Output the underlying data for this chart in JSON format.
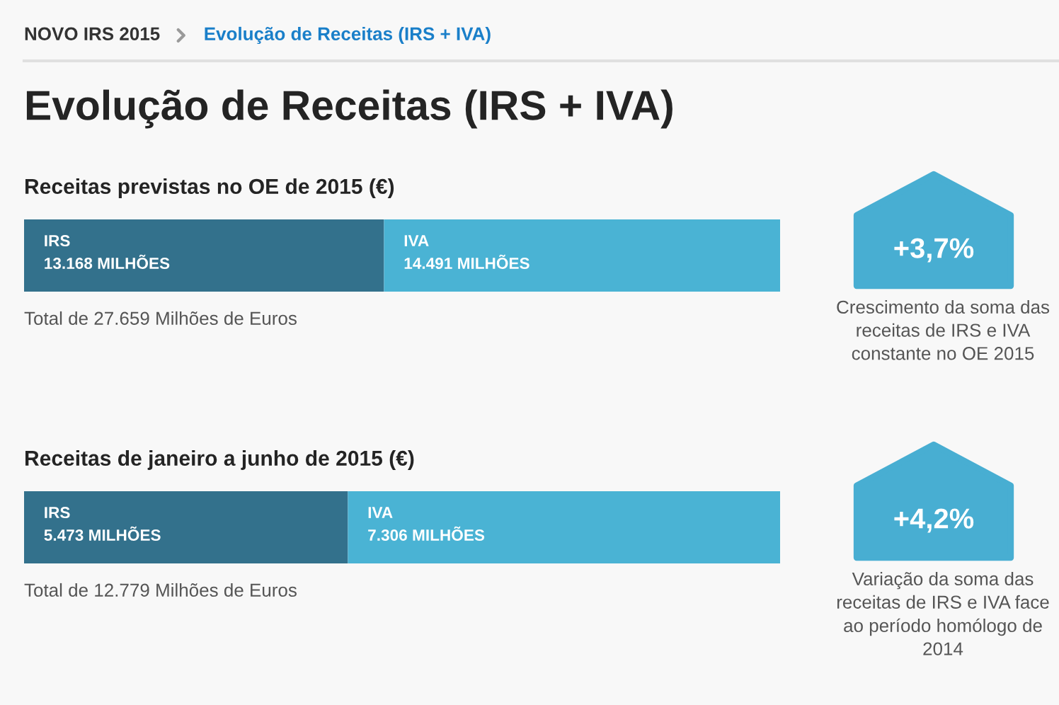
{
  "chart_data": [
    {
      "type": "other",
      "title": "Evolução de Receitas (IRS + IVA)",
      "annotations": [
        "NOVO IRS 2015",
        "Evolução de Receitas (IRS + IVA)"
      ]
    },
    {
      "type": "bar",
      "orientation": "horizontal",
      "stacked": true,
      "title": "Receitas previstas no OE de 2015 (€)",
      "categories": [
        null
      ],
      "xlim": [
        0,
        27659
      ],
      "tick_labels": false,
      "series": [
        {
          "name": "IRS",
          "color": "#33718c",
          "values": [
            13168
          ],
          "value_labels": [
            "13.168 MILHÕES"
          ]
        },
        {
          "name": "IVA",
          "color": "#4ab3d4",
          "values": [
            14491
          ],
          "value_labels": [
            "14.491 MILHÕES"
          ]
        }
      ],
      "annotations": [
        "Total de 27.659 Milhões de Euros"
      ]
    },
    {
      "type": "other",
      "title": "+3,7%",
      "annotations": [
        "Crescimento da soma das receitas de IRS e IVA constante no OE 2015"
      ]
    },
    {
      "type": "bar",
      "orientation": "horizontal",
      "stacked": true,
      "title": "Receitas de janeiro a junho de 2015 (€)",
      "categories": [
        null
      ],
      "xlim": [
        0,
        12779
      ],
      "tick_labels": false,
      "series": [
        {
          "name": "IRS",
          "color": "#33718c",
          "values": [
            5473
          ],
          "value_labels": [
            "5.473 MILHÕES"
          ]
        },
        {
          "name": "IVA",
          "color": "#4ab3d4",
          "values": [
            7306
          ],
          "value_labels": [
            "7.306 MILHÕES"
          ]
        }
      ],
      "annotations": [
        "Total de 12.779 Milhões de Euros"
      ]
    },
    {
      "type": "other",
      "title": "+4,2%",
      "annotations": [
        "Variação da soma das receitas de IRS e IVA face ao período homólogo de 2014"
      ]
    }
  ]
}
